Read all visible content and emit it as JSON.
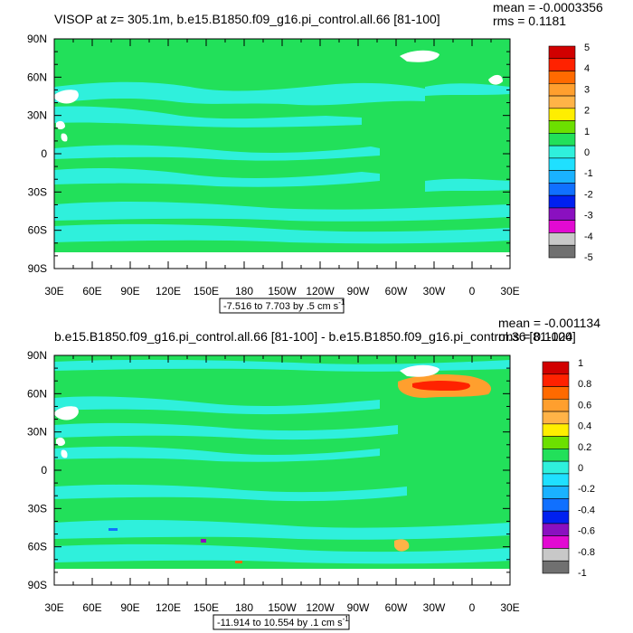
{
  "colors": {
    "land": "#ffffff",
    "green": "#22e05a",
    "cyan": "#2ff0dc",
    "axis": "#000000"
  },
  "palette": [
    "#d10000",
    "#ff2200",
    "#ff6a00",
    "#ff9f2e",
    "#ffb347",
    "#ffee00",
    "#6ce000",
    "#22e05a",
    "#2ff0dc",
    "#1fe0ff",
    "#1ab2ff",
    "#1070ff",
    "#0020f0",
    "#8a10c0",
    "#e20ad2",
    "#c8c8c8",
    "#707070"
  ],
  "chart_data": [
    {
      "type": "heatmap",
      "title": "VISOP at z= 305.1m, b.e15.B1850.f09_g16.pi_control.all.66 [81-100]",
      "stats": {
        "mean": "mean = -0.0003356",
        "rms": "rms = 0.1181"
      },
      "xtick_labels": [
        "30E",
        "60E",
        "90E",
        "120E",
        "150E",
        "180",
        "150W",
        "120W",
        "90W",
        "60W",
        "30W",
        "0",
        "30E"
      ],
      "ytick_labels": [
        "90N",
        "60N",
        "30N",
        "0",
        "30S",
        "60S",
        "90S"
      ],
      "xlim": [
        30,
        390
      ],
      "ylim": [
        -90,
        90
      ],
      "colorbar_labels": [
        "5",
        "4",
        "3",
        "2",
        "1",
        "0",
        "-1",
        "-2",
        "-3",
        "-4",
        "-5"
      ],
      "levels": [
        -5,
        5
      ],
      "info": "-7.516 to 7.703 by .5 cm s",
      "info_sup": "-1"
    },
    {
      "type": "heatmap",
      "title": "b.e15.B1850.f09_g16.pi_control.all.66 [81-100] - b.e15.B1850.f09_g16.pi_control.36 [81-100]",
      "stats": {
        "mean": "mean = -0.001134",
        "rms": "rms = 0.1024"
      },
      "xtick_labels": [
        "30E",
        "60E",
        "90E",
        "120E",
        "150E",
        "180",
        "150W",
        "120W",
        "90W",
        "60W",
        "30W",
        "0",
        "30E"
      ],
      "ytick_labels": [
        "90N",
        "60N",
        "30N",
        "0",
        "30S",
        "60S",
        "90S"
      ],
      "xlim": [
        30,
        390
      ],
      "ylim": [
        -90,
        90
      ],
      "colorbar_labels": [
        "1",
        "0.8",
        "0.6",
        "0.4",
        "0.2",
        "0",
        "-0.2",
        "-0.4",
        "-0.6",
        "-0.8",
        "-1"
      ],
      "levels": [
        -1,
        1
      ],
      "info": "-11.914 to 10.554 by .1 cm s",
      "info_sup": "-1"
    }
  ]
}
